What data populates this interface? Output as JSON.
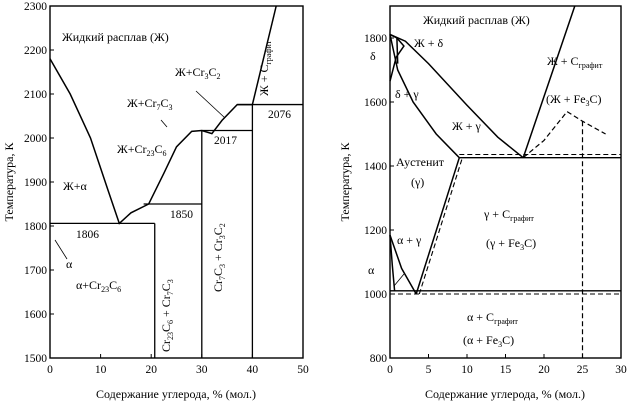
{
  "chart_data": [
    {
      "type": "phase-diagram",
      "system": "Cr-C",
      "xlabel": "Содержание углерода, % (мол.)",
      "ylabel": "Температура, К",
      "xlim": [
        0,
        50
      ],
      "ylim": [
        1500,
        2300
      ],
      "x_ticks": [
        0,
        10,
        20,
        30,
        40,
        50
      ],
      "y_ticks": [
        1500,
        1600,
        1700,
        1800,
        1900,
        2000,
        2100,
        2200,
        2300
      ],
      "liquidus": [
        [
          0,
          2180
        ],
        [
          4,
          2100
        ],
        [
          8,
          2000
        ],
        [
          11.5,
          1880
        ],
        [
          13.7,
          1806
        ],
        [
          16,
          1830
        ],
        [
          19.5,
          1850
        ],
        [
          22.5,
          1920
        ],
        [
          25,
          1980
        ],
        [
          28,
          2015
        ],
        [
          30,
          2017
        ],
        [
          32,
          2010
        ],
        [
          34,
          2040
        ],
        [
          37,
          2076
        ],
        [
          40,
          2076
        ]
      ],
      "graphite_liquidus": [
        [
          40,
          2076
        ],
        [
          44.7,
          2300
        ]
      ],
      "solidus_curve": [
        [
          0,
          2180
        ],
        [
          0,
          1806
        ]
      ],
      "horizontals": [
        {
          "T": 1806,
          "x": [
            0,
            20.7
          ]
        },
        {
          "T": 1850,
          "x": [
            18.5,
            30
          ]
        },
        {
          "T": 2017,
          "x": [
            30,
            40
          ]
        },
        {
          "T": 2076,
          "x": [
            37,
            50
          ]
        }
      ],
      "phase_lines_x": [
        20.7,
        30,
        40
      ],
      "invariant_labels": [
        "1806",
        "1850",
        "2017",
        "2076"
      ],
      "regions": [
        "Жидкий расплав (Ж)",
        "Ж+α",
        "α",
        "α+Cr23C6",
        "Ж+Cr23C6",
        "Ж+Cr7C3",
        "Ж+Cr3C2",
        "Cr23C6 + Cr7C3",
        "Cr7C3 + Cr3C2",
        "Ж + Cграфит"
      ]
    },
    {
      "type": "phase-diagram",
      "system": "Fe-C",
      "xlabel": "Содержание углерода, % (мол.)",
      "ylabel": "Температура, К",
      "xlim": [
        0,
        30
      ],
      "ylim": [
        800,
        1900
      ],
      "x_ticks": [
        0,
        5,
        10,
        15,
        20,
        25,
        30
      ],
      "y_ticks": [
        800,
        1000,
        1200,
        1400,
        1600,
        1800
      ],
      "liquidus": [
        [
          0,
          1811
        ],
        [
          2,
          1790
        ],
        [
          5,
          1720
        ],
        [
          10,
          1590
        ],
        [
          14,
          1490
        ],
        [
          17.3,
          1426
        ]
      ],
      "graphite_liquidus": [
        [
          17.3,
          1426
        ],
        [
          24,
          1900
        ]
      ],
      "cementite_curve": [
        [
          17.3,
          1426
        ],
        [
          20,
          1480
        ],
        [
          23,
          1570
        ],
        [
          25,
          1540
        ],
        [
          28,
          1500
        ]
      ],
      "solidus": [
        [
          0,
          1811
        ],
        [
          1,
          1700
        ],
        [
          3,
          1600
        ],
        [
          6,
          1500
        ],
        [
          9,
          1426
        ]
      ],
      "acm_line": [
        [
          3.4,
          1000
        ],
        [
          9,
          1426
        ]
      ],
      "a3_line": [
        [
          0,
          1184
        ],
        [
          1.5,
          1080
        ],
        [
          3.4,
          1000
        ]
      ],
      "horizontals": [
        {
          "T": 1426,
          "x": [
            9,
            30
          ]
        },
        {
          "T": 1010,
          "x": [
            0,
            30
          ]
        },
        {
          "T": 1000,
          "x": [
            0,
            30
          ]
        }
      ],
      "cementite_x": 25,
      "regions": [
        "Жидкий расплав (Ж)",
        "Ж + δ",
        "δ",
        "δ + γ",
        "Ж + γ",
        "Ж + Cграфит",
        "(Ж + Fe3C)",
        "Аустенит",
        "(γ)",
        "γ + Cграфит",
        "(γ + Fe3C)",
        "α + γ",
        "α",
        "α + Cграфит",
        "(α + Fe3C)"
      ]
    }
  ]
}
